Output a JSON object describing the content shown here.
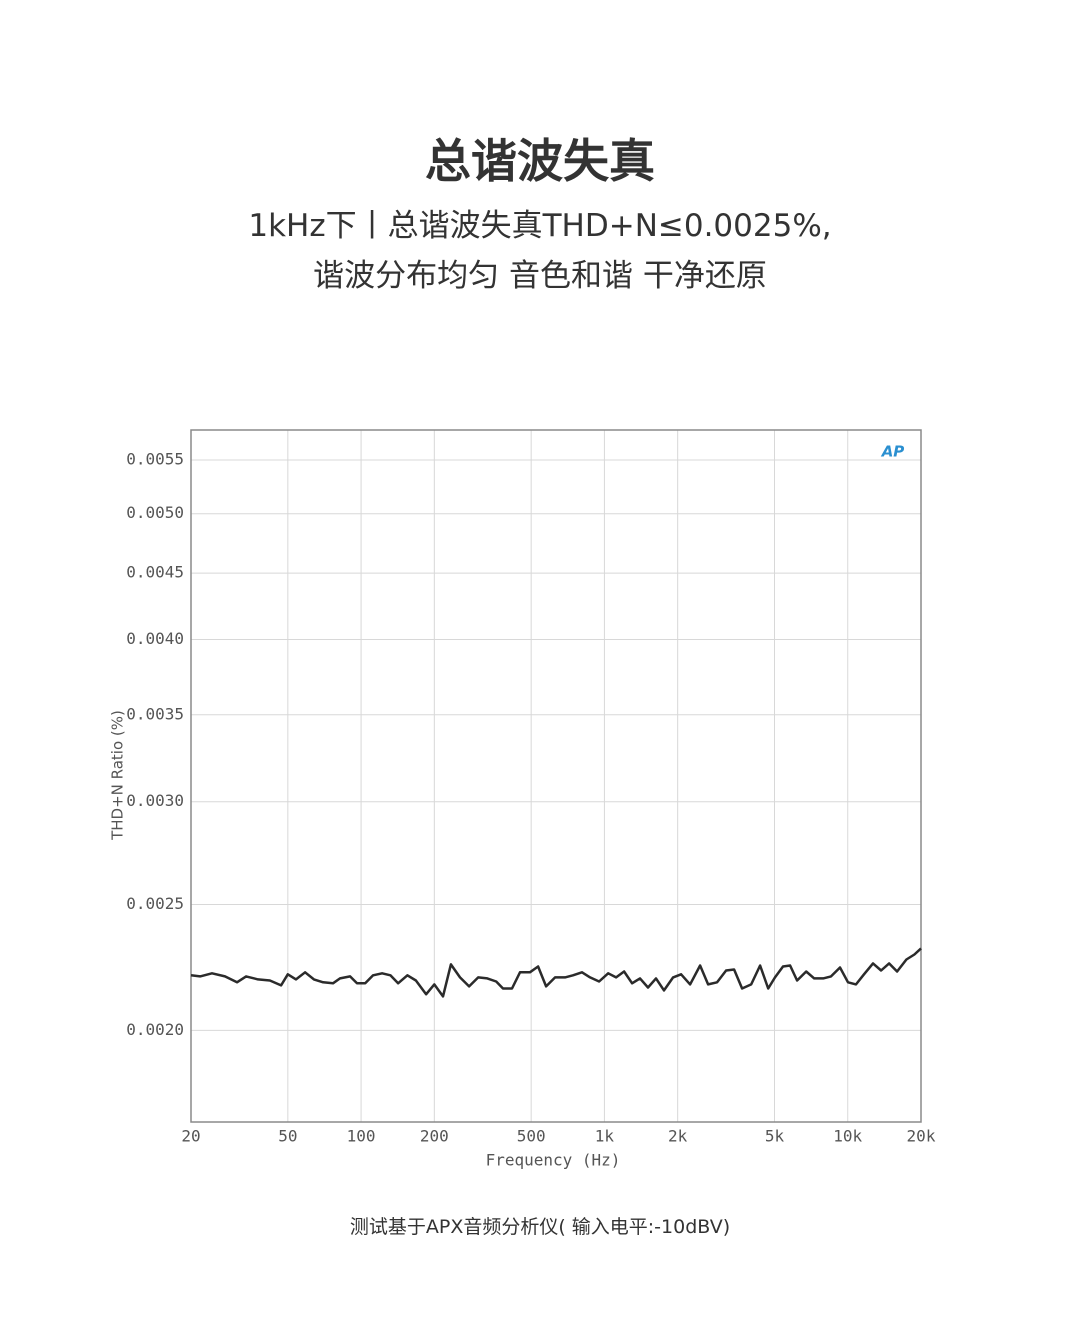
{
  "header": {
    "title": "总谐波失真",
    "subtitle_lines": [
      "1kHz下丨总谐波失真THD+N≤0.0025%,",
      "谐波分布均匀 音色和谐 干净还原"
    ]
  },
  "chart_data": {
    "type": "line",
    "xlabel": "Frequency (Hz)",
    "ylabel": "THD+N Ratio (%)",
    "logo": "AP",
    "xlog": true,
    "ylog": true,
    "grid": true,
    "color": "#2b2b2b",
    "xlim": [
      20,
      20000
    ],
    "ylim": [
      0.0017,
      0.0058
    ],
    "xticks": [
      20,
      50,
      100,
      200,
      500,
      {
        "value": 1000,
        "label": "1k"
      },
      {
        "value": 2000,
        "label": "2k"
      },
      {
        "value": 5000,
        "label": "5k"
      },
      {
        "value": 10000,
        "label": "10k"
      },
      {
        "value": 20000,
        "label": "20k"
      }
    ],
    "yticks": [
      {
        "value": 0.002,
        "label": "0.0020"
      },
      0.0025,
      {
        "value": 0.003,
        "label": "0.0030"
      },
      0.0035,
      {
        "value": 0.004,
        "label": "0.0040"
      },
      0.0045,
      {
        "value": 0.005,
        "label": "0.0050"
      },
      0.0055
    ],
    "x": [
      20,
      21.8,
      24.4,
      27.6,
      30.9,
      33.7,
      37.7,
      42.2,
      46.9,
      50,
      54,
      58.9,
      64,
      69.8,
      76.7,
      81.9,
      90.1,
      96.2,
      104,
      112,
      122,
      132,
      142,
      155,
      168,
      185,
      200,
      217,
      234,
      255,
      278,
      303,
      330,
      359,
      383,
      417,
      450,
      494,
      534,
      576,
      627,
      689,
      743,
      809,
      873,
      951,
      1036,
      1117,
      1205,
      1300,
      1400,
      1510,
      1630,
      1758,
      1915,
      2066,
      2250,
      2472,
      2667,
      2904,
      3162,
      3412,
      3681,
      4009,
      4365,
      4710,
      5024,
      5420,
      5794,
      6195,
      6746,
      7278,
      7925,
      8531,
      9290,
      10023,
      10813,
      11665,
      12703,
      13705,
      14786,
      15952,
      17412,
      18786,
      20000
    ],
    "values": [
      0.002205,
      0.002201,
      0.002213,
      0.002201,
      0.002178,
      0.002201,
      0.002189,
      0.002185,
      0.002166,
      0.002209,
      0.002189,
      0.002217,
      0.002189,
      0.002178,
      0.002174,
      0.002193,
      0.002201,
      0.002174,
      0.002174,
      0.002205,
      0.002213,
      0.002205,
      0.002174,
      0.002205,
      0.002185,
      0.002132,
      0.00217,
      0.002124,
      0.002248,
      0.002197,
      0.002162,
      0.002197,
      0.002193,
      0.002181,
      0.002154,
      0.002154,
      0.002217,
      0.002217,
      0.00224,
      0.002162,
      0.002197,
      0.002197,
      0.002205,
      0.002217,
      0.002197,
      0.002181,
      0.002213,
      0.002197,
      0.00222,
      0.002174,
      0.002193,
      0.002158,
      0.002193,
      0.002147,
      0.002197,
      0.002209,
      0.00217,
      0.002244,
      0.00217,
      0.002178,
      0.002224,
      0.002228,
      0.002154,
      0.00217,
      0.002244,
      0.002154,
      0.002197,
      0.00224,
      0.002244,
      0.002185,
      0.00222,
      0.002193,
      0.002193,
      0.002201,
      0.002236,
      0.002178,
      0.00217,
      0.002209,
      0.002252,
      0.002224,
      0.002252,
      0.00222,
      0.002268,
      0.002288,
      0.002313
    ]
  },
  "footnote": "测试基于APX音频分析仪( 输入电平:-10dBV)"
}
